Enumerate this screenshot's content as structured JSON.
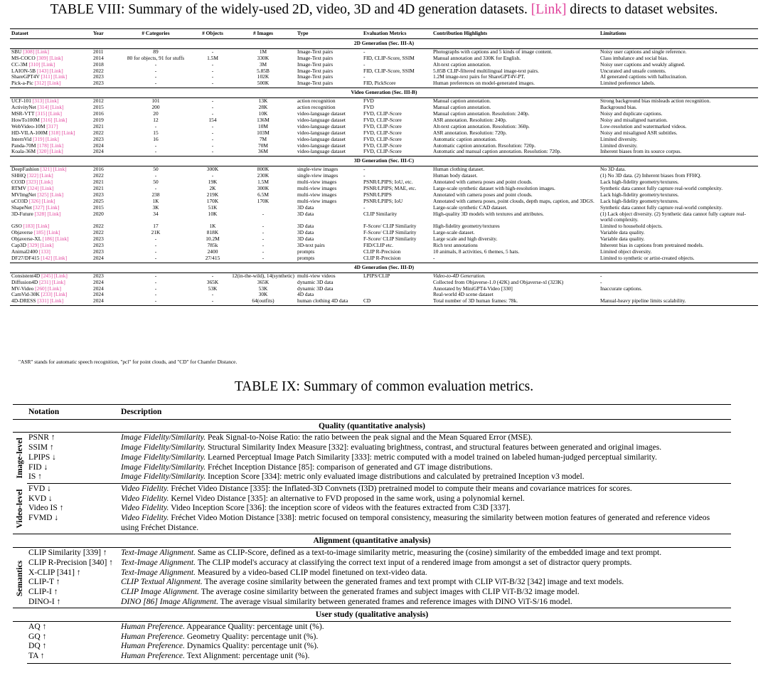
{
  "table8": {
    "title": "TABLE VIII: Summary of the widely-used 2D, video, 3D and 4D generation datasets.",
    "title_link": "[Link]",
    "title_tail": "directs to dataset websites.",
    "headers": [
      "Dataset",
      "Year",
      "# Categories",
      "# Objects",
      "# Images",
      "Type",
      "Evaluation Metrics",
      "Contribution Highlights",
      "Limitations"
    ],
    "sections": [
      {
        "title": "2D Generation (Sec. III-A)",
        "rows": [
          {
            "dataset": "SBU",
            "ref": "[308] [Link]",
            "cells": [
              "2011",
              "89",
              "-",
              "1M",
              "Image-Text pairs",
              "-",
              "Photographs with captions and 5 kinds of image content.",
              "Noisy user captions and single reference."
            ]
          },
          {
            "dataset": "MS-COCO",
            "ref": "[309] [Link]",
            "cells": [
              "2014",
              "80 for objects, 91 for stuffs",
              "1.5M",
              "330K",
              "Image-Text pairs",
              "FID, CLIP-Score, SSIM",
              "Manual annotation and 330K for English.",
              "Class imbalance and social bias."
            ]
          },
          {
            "dataset": "CC-3M",
            "ref": "[310] [Link]",
            "cells": [
              "2018",
              "-",
              "-",
              "3M",
              "Image-Text pairs",
              "-",
              "Alt-text caption annotation.",
              "Noisy user captions and weakly aligned."
            ]
          },
          {
            "dataset": "LAION-5B",
            "ref": "[143] [Link]",
            "cells": [
              "2022",
              "-",
              "-",
              "5.85B",
              "Image-Text pairs",
              "FID, CLIP-Score, SSIM",
              "5.85B CLIP-filtered multilingual image-text pairs.",
              "Uncurated and unsafe contents."
            ]
          },
          {
            "dataset": "ShareGPT4V",
            "ref": "[311] [Link]",
            "cells": [
              "2023",
              "-",
              "-",
              "102K",
              "Image-Text pairs",
              "-",
              "1.2M image-text pairs for ShareGPT4V-PT.",
              "AI generated captions with hallucination."
            ]
          },
          {
            "dataset": "Pick-a-Pic",
            "ref": "[312] [Link]",
            "cells": [
              "2023",
              "-",
              "-",
              "500K",
              "Image-Text pairs",
              "FID, PickScore",
              "Human preferences on model-generated images.",
              "Limited preference labels."
            ]
          }
        ]
      },
      {
        "title": "Video Generation (Sec. III-B)",
        "rows": [
          {
            "dataset": "UCF-101",
            "ref": "[313] [Link]",
            "cells": [
              "2012",
              "101",
              "-",
              "13K",
              "action recognition",
              "FVD",
              "Manual caption annotation.",
              "Strong background bias misleads action recognition."
            ]
          },
          {
            "dataset": "ActivityNet",
            "ref": "[314] [Link]",
            "cells": [
              "2015",
              "200",
              "-",
              "28K",
              "action recognition",
              "FVD",
              "Manual caption annotation.",
              "Background bias."
            ]
          },
          {
            "dataset": "MSR-VTT",
            "ref": "[315] [Link]",
            "cells": [
              "2016",
              "20",
              "-",
              "10K",
              "video-language dataset",
              "FVD, CLIP-Score",
              "Manual caption annotation. Resolution: 240p.",
              "Noisy and duplicate captions."
            ]
          },
          {
            "dataset": "HowTo100M",
            "ref": "[316] [Link]",
            "cells": [
              "2019",
              "12",
              "154",
              "136M",
              "video-language dataset",
              "FVD, CLIP-Score",
              "ASR annotation. Resolution: 240p.",
              "Noisy and misaligned narration."
            ]
          },
          {
            "dataset": "WebVideo-10M",
            "ref": "[317]",
            "cells": [
              "2021",
              "-",
              "-",
              "10M",
              "video-language dataset",
              "FVD, CLIP-Score",
              "Alt-text caption annotation. Resolution: 360p.",
              "Low-resolution and watermarked videos."
            ]
          },
          {
            "dataset": "HD-VILA-100M",
            "ref": "[318] [Link]",
            "cells": [
              "2022",
              "15",
              "-",
              "103M",
              "video-language dataset",
              "FVD, CLIP-Score",
              "ASR annotation. Resolution: 720p.",
              "Noisy and misaligned ASR subtitles."
            ]
          },
          {
            "dataset": "InternVid",
            "ref": "[319] [Link]",
            "cells": [
              "2023",
              "16",
              "-",
              "7M",
              "video-language dataset",
              "FVD, CLIP-Score",
              "Automatic caption annotation.",
              "Limited diversity."
            ]
          },
          {
            "dataset": "Panda-70M",
            "ref": "[178] [Link]",
            "cells": [
              "2024",
              "-",
              "-",
              "70M",
              "video-language dataset",
              "FVD, CLIP-Score",
              "Automatic caption annotation. Resolution: 720p.",
              "Limited diversity."
            ]
          },
          {
            "dataset": "Koala-36M",
            "ref": "[320] [Link]",
            "cells": [
              "2024",
              "-",
              "-",
              "36M",
              "video-language dataset",
              "FVD, CLIP-Score",
              "Automatic and manual caption annotation. Resolution: 720p.",
              "Inherent biases from its source corpus."
            ]
          }
        ]
      },
      {
        "title": "3D Generation (Sec. III-C)",
        "rows": [
          {
            "dataset": "DeepFashion",
            "ref": "[321] [Link]",
            "cells": [
              "2016",
              "50",
              "300K",
              "800K",
              "single-view images",
              "-",
              "Human clothing dataset.",
              "No 3D data."
            ]
          },
          {
            "dataset": "SHHQ",
            "ref": "[322] [Link]",
            "cells": [
              "2022",
              "-",
              "-",
              "230K",
              "single-view images",
              "-",
              "Human body dataset.",
              "(1) No 3D data. (2) Inherent biases from FFHQ."
            ]
          },
          {
            "dataset": "CO3D",
            "ref": "[323] [Link]",
            "cells": [
              "2021",
              "50",
              "19K",
              "1.5M",
              "multi-view images",
              "PSNR/LPIPS; IoU, etc.",
              "Annotated with camera poses and point clouds.",
              "Lack high-fidelity geometry/textures."
            ]
          },
          {
            "dataset": "RTMV",
            "ref": "[324] [Link]",
            "cells": [
              "2021",
              "-",
              "2K",
              "300K",
              "multi-view images",
              "PSNR/LPIPS; MAE, etc.",
              "Large-scale synthetic dataset with high-resolution images.",
              "Synthetic data cannot fully capture real-world complexity."
            ]
          },
          {
            "dataset": "MVImgNet",
            "ref": "[325] [Link]",
            "cells": [
              "2023",
              "238",
              "219K",
              "6.5M",
              "multi-view images",
              "PSNR/LPIPS",
              "Annotated with camera poses and point clouds.",
              "Lack high-fidelity geometry/textures."
            ]
          },
          {
            "dataset": "uCO3D",
            "ref": "[326] [Link]",
            "cells": [
              "2025",
              "1K",
              "170K",
              "170K",
              "multi-view images",
              "PSNR/LPIPS; IoU",
              "Annotated with camera poses, point clouds, depth maps, caption, and 3DGS.",
              "Lack high-fidelity geometry/textures."
            ]
          },
          {
            "dataset": "ShapeNet",
            "ref": "[327] [Link]",
            "cells": [
              "2015",
              "3K",
              "51K",
              null,
              "3D data",
              "-",
              "Large-scale synthetic CAD dataset.",
              "Synthetic data cannot fully capture real-world complexity."
            ]
          },
          {
            "dataset": "3D-Future",
            "ref": "[328] [Link]",
            "cells": [
              "2020",
              "34",
              "10K",
              "-",
              "3D data",
              "CLIP Similarity",
              "High-quality 3D models with textures and attributes.",
              "(1) Lack object diversity. (2) Synthetic data cannot fully capture real-world complexity."
            ]
          },
          {
            "dataset": "GSO",
            "ref": "[183] [Link]",
            "cells": [
              "2022",
              "17",
              "1K",
              "-",
              "3D data",
              "F-Score/ CLIP Similarity",
              "High-fidelity geometry/textures",
              "Limited to household objects."
            ]
          },
          {
            "dataset": "Objaverse",
            "ref": "[185] [Link]",
            "cells": [
              "2022",
              "21K",
              "818K",
              "-",
              "3D data",
              "F-Score/ CLIP Similarity",
              "Large-scale dataset.",
              "Variable data quality."
            ]
          },
          {
            "dataset": "Objaverse-XL",
            "ref": "[186] [Link]",
            "cells": [
              "2023",
              "-",
              "10.2M",
              "-",
              "3D data",
              "F-Score/ CLIP Similarity",
              "Large scale and high diversity.",
              "Variable data quality."
            ]
          },
          {
            "dataset": "Cap3D",
            "ref": "[329] [Link]",
            "cells": [
              "2023",
              "-",
              "785k",
              "-",
              "3D-text pairs",
              "FID/CLIP etc.",
              "Rich text annotations",
              "Inherent bias in captions from pretrained models."
            ]
          },
          {
            "dataset": "Animal2400",
            "ref": "[133]",
            "cells": [
              "2023",
              "-",
              "2400",
              "-",
              "prompts",
              "CLIP R-Precision",
              "10 animals, 8 activities, 6 themes, 5 hats.",
              "Limited object diversity."
            ]
          },
          {
            "dataset": "DF27/DF415",
            "ref": "[142] [Link]",
            "cells": [
              "2024",
              "-",
              "27/415",
              "-",
              "prompts",
              "CLIP R-Precision",
              "-",
              "Limited to synthetic or artist-created objects."
            ]
          }
        ]
      },
      {
        "title": "4D Generation (Sec. III-D)",
        "rows": [
          {
            "dataset": "Consistent4D",
            "ref": "[245] [Link]",
            "cells": [
              "2023",
              "-",
              "-",
              "12(in-the-wild), 14(synthetic)",
              "multi-view videos",
              "LPIPS/CLIP",
              "Video-to-4D Generation.",
              "-"
            ]
          },
          {
            "dataset": "Diffusion4D",
            "ref": "[231] [Link]",
            "cells": [
              "2024",
              "-",
              "365K",
              "365K",
              "dynamic 3D data",
              null,
              "Collected from Objaverse-1.0 (42K) and Objaverse-xl (323K)",
              "-"
            ]
          },
          {
            "dataset": "MV-Video",
            "ref": "[260] [Link]",
            "cells": [
              "2024",
              "-",
              "53K",
              "53K",
              "dynamic 3D data",
              null,
              "Annotated by MiniGPT4-Video [330]",
              "Inaccurate captions."
            ]
          },
          {
            "dataset": "CamVid-30K",
            "ref": "[233] [Link]",
            "cells": [
              "2024",
              "-",
              "-",
              "30K",
              "4D data",
              null,
              "Real-world 4D scene dataset",
              null
            ]
          },
          {
            "dataset": "4D-DRESS",
            "ref": "[331] [Link]",
            "cells": [
              "2024",
              "-",
              "-",
              "64(outfits)",
              "human clothing 4D data",
              "CD",
              "Total number of 3D human frames: 78k.",
              "Manual-heavy pipeline limits scalability."
            ]
          }
        ]
      }
    ],
    "footnote": "\"ASR\" stands for automatic speech recognition, \"pcl\" for point clouds, and \"CD\" for Chamfer Distance."
  },
  "table9": {
    "title": "TABLE IX: Summary of common evaluation metrics.",
    "headers": [
      "Notation",
      "Description"
    ],
    "sections": [
      {
        "title": "Quality (quantitative analysis)",
        "groups": [
          {
            "label": "Image-level",
            "rows": [
              {
                "notation": "PSNR ↑",
                "lead": "Image Fidelity/Similarity.",
                "text": "Peak Signal-to-Noise Ratio: the ratio between the peak signal and the Mean Squared Error (MSE)."
              },
              {
                "notation": "SSIM ↑",
                "lead": "Image Fidelity/Similarity.",
                "text": "Structural Similarity Index Measure [332]: evaluating brightness, contrast, and structural features between generated and original images."
              },
              {
                "notation": "LPIPS ↓",
                "lead": "Image Fidelity/Similarity.",
                "text": "Learned Perceptual Image Patch Similarity [333]: metric computed with a model trained on labeled human-judged perceptual similarity."
              },
              {
                "notation": "FID ↓",
                "lead": "Image Fidelity/Similarity.",
                "text": "Fréchet Inception Distance [85]: comparison of generated and GT image distributions."
              },
              {
                "notation": "IS ↑",
                "lead": "Image Fidelity/Similarity.",
                "text": "Inception Score [334]: metric only evaluated image distributions and calculated by pretrained Inception v3 model."
              }
            ]
          },
          {
            "label": "Video-level",
            "rows": [
              {
                "notation": "FVD ↓",
                "lead": "Video Fidelity.",
                "text": "Fréchet Video Distance [335]: the Inflated-3D Convnets (I3D) pretrained model to compute their means and covariance matrices for scores."
              },
              {
                "notation": "KVD ↓",
                "lead": "Video Fidelity.",
                "text": "Kernel Video Distance [335]: an alternative to FVD proposed in the same work, using a polynomial kernel."
              },
              {
                "notation": "Video IS ↑",
                "lead": "Video Fidelity.",
                "text": "Video Inception Score [336]: the inception score of videos with the features extracted from C3D [337]."
              },
              {
                "notation": "FVMD ↓",
                "lead": "Video Fidelity.",
                "text": "Fréchet Video Motion Distance [338]: metric focused on temporal consistency, measuring the similarity between motion features of generated and reference videos using Fréchet Distance."
              }
            ]
          }
        ]
      },
      {
        "title": "Alignment (quantitative analysis)",
        "groups": [
          {
            "label": "Semantics",
            "rows": [
              {
                "notation": "CLIP Similarity [339] ↑",
                "lead": "Text-Image Alignment.",
                "text": "Same as CLIP-Score, defined as a text-to-image similarity metric, measuring the (cosine) similarity of the embedded image and text prompt."
              },
              {
                "notation": "CLIP R-Precision [340] ↑",
                "lead": "Text-Image Alignment.",
                "text": "The CLIP model's accuracy at classifying the correct text input of a rendered image from amongst a set of distractor query prompts."
              },
              {
                "notation": "X-CLIP [341] ↑",
                "lead": "Text-Image Alignment.",
                "text": "Measured by a video-based CLIP model finetuned on text-video data."
              },
              {
                "notation": "CLIP-T ↑",
                "lead": "CLIP Textual Alignment.",
                "text": "The average cosine similarity between the generated frames and text prompt with CLIP ViT-B/32 [342] image and text models."
              },
              {
                "notation": "CLIP-I ↑",
                "lead": "CLIP Image Alignment.",
                "text": "The average cosine similarity between the generated frames and subject images with CLIP ViT-B/32 image model."
              },
              {
                "notation": "DINO-I ↑",
                "lead": "DINO [86] Image Alignment.",
                "text": "The average visual similarity between generated frames and reference images with DINO ViT-S/16 model."
              }
            ]
          }
        ]
      },
      {
        "title": "User study (qualitative analysis)",
        "groups": [
          {
            "rows": [
              {
                "notation": "AQ ↑",
                "lead": "Human Preference.",
                "text": "Appearance Quality: percentage unit (%)."
              },
              {
                "notation": "GQ ↑",
                "lead": "Human Preference.",
                "text": "Geometry Quality: percentage unit (%)."
              },
              {
                "notation": "DQ ↑",
                "lead": "Human Preference.",
                "text": "Dynamics Quality: percentage unit (%)."
              },
              {
                "notation": "TA ↑",
                "lead": "Human Preference.",
                "text": "Text Alignment: percentage unit (%)."
              }
            ]
          }
        ]
      }
    ]
  }
}
